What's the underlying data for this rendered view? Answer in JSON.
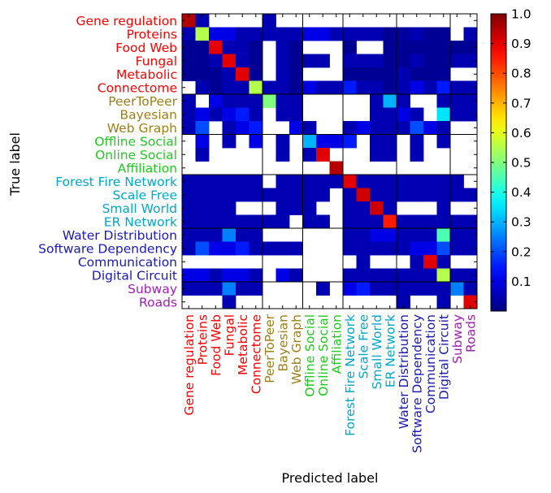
{
  "chart_data": {
    "type": "heatmap",
    "xlabel": "Predicted label",
    "ylabel": "True label",
    "labels": [
      "Gene regulation",
      "Proteins",
      "Food Web",
      "Fungal",
      "Metabolic",
      "Connectome",
      "PeerToPeer",
      "Bayesian",
      "Web Graph",
      "Offline Social",
      "Online Social",
      "Affiliation",
      "Forest Fire Network",
      "Scale Free",
      "Small World",
      "ER Network",
      "Water Distribution",
      "Software Dependency",
      "Communication",
      "Digital Circuit",
      "Subway",
      "Roads"
    ],
    "label_groups": [
      0,
      0,
      0,
      0,
      0,
      0,
      1,
      1,
      1,
      2,
      2,
      2,
      3,
      3,
      3,
      3,
      4,
      4,
      4,
      4,
      5,
      5
    ],
    "group_colors": [
      "#ff0000",
      "#9e7f17",
      "#1ecc1e",
      "#00a8cc",
      "#1a1ab4",
      "#a31db8"
    ],
    "group_boundaries": [
      6,
      9,
      12,
      16,
      20
    ],
    "colorbar": {
      "min": 0,
      "max": 1,
      "ticks": [
        0.1,
        0.2,
        0.3,
        0.4,
        0.5,
        0.6,
        0.7,
        0.8,
        0.9,
        1.0
      ],
      "colormap": "jet"
    },
    "matrix": [
      [
        0.95,
        0.05,
        null,
        null,
        null,
        null,
        0.05,
        null,
        null,
        null,
        null,
        null,
        null,
        null,
        null,
        null,
        null,
        null,
        null,
        null,
        null,
        null
      ],
      [
        0.05,
        0.55,
        0.1,
        0.1,
        0.05,
        0.05,
        0.05,
        0.05,
        0.05,
        0.1,
        0.1,
        0.05,
        0.05,
        0.05,
        0.05,
        0.02,
        0.03,
        0.05,
        0.02,
        0.02,
        null,
        0.05
      ],
      [
        0.02,
        0.02,
        0.9,
        0.05,
        0.05,
        0.02,
        null,
        0.05,
        0.02,
        null,
        null,
        null,
        0.02,
        null,
        null,
        0.02,
        0.02,
        0.02,
        0.02,
        0.02,
        0.02,
        0.02
      ],
      [
        0.02,
        0.02,
        0.05,
        0.9,
        0.05,
        0.02,
        null,
        0.05,
        0.02,
        0.05,
        0.05,
        null,
        0.05,
        0.05,
        0.05,
        0.02,
        0.02,
        0.05,
        0.02,
        0.02,
        0.05,
        0.05
      ],
      [
        0.02,
        0.02,
        0.02,
        0.05,
        0.9,
        0.02,
        null,
        0.05,
        0.02,
        null,
        null,
        null,
        0.02,
        0.02,
        0.02,
        0.02,
        0.05,
        0.02,
        0.02,
        0.02,
        null,
        null
      ],
      [
        null,
        0.05,
        0.02,
        0.05,
        0.05,
        0.55,
        0.05,
        0.05,
        0.02,
        0.1,
        0.05,
        0.05,
        0.15,
        0.05,
        0.05,
        0.02,
        0.05,
        0.1,
        0.05,
        0.15,
        0.05,
        0.05
      ],
      [
        0.05,
        null,
        0.1,
        0.05,
        0.05,
        0.05,
        0.5,
        0.05,
        0.05,
        null,
        null,
        null,
        null,
        null,
        0.05,
        0.3,
        0.05,
        null,
        null,
        0.05,
        0.05,
        0.05
      ],
      [
        0.05,
        0.1,
        0.05,
        0.1,
        0.15,
        0.05,
        null,
        0.05,
        0.05,
        null,
        null,
        null,
        null,
        null,
        0.05,
        0.05,
        0.1,
        0.05,
        null,
        0.35,
        0.05,
        0.05
      ],
      [
        0.05,
        0.2,
        null,
        0.05,
        0.1,
        0.15,
        null,
        null,
        0.1,
        0.05,
        null,
        null,
        0.05,
        0.1,
        0.05,
        0.05,
        0.05,
        0.2,
        0.1,
        0.05,
        null,
        null
      ],
      [
        null,
        0.1,
        null,
        0.05,
        null,
        0.1,
        null,
        0.05,
        null,
        0.3,
        0.1,
        0.1,
        0.15,
        null,
        0.05,
        0.05,
        null,
        0.05,
        null,
        0.05,
        null,
        null
      ],
      [
        null,
        0.05,
        null,
        null,
        null,
        null,
        null,
        0.05,
        null,
        0.05,
        0.9,
        null,
        null,
        null,
        0.05,
        0.05,
        null,
        0.05,
        null,
        null,
        null,
        null
      ],
      [
        null,
        null,
        null,
        null,
        null,
        null,
        null,
        null,
        null,
        null,
        null,
        0.95,
        null,
        null,
        null,
        null,
        null,
        null,
        null,
        null,
        null,
        null
      ],
      [
        0.05,
        0.05,
        0.05,
        0.05,
        0.05,
        0.05,
        null,
        0.05,
        0.05,
        0.05,
        0.05,
        0.05,
        0.9,
        0.05,
        0.05,
        0.05,
        0.05,
        0.05,
        0.05,
        0.05,
        0.05,
        null
      ],
      [
        0.05,
        0.05,
        0.05,
        0.05,
        0.05,
        0.05,
        0.05,
        0.05,
        0.05,
        0.05,
        0.05,
        null,
        0.05,
        0.92,
        0.05,
        0.05,
        0.05,
        0.05,
        0.05,
        0.05,
        0.05,
        0.05
      ],
      [
        0.05,
        0.05,
        0.05,
        0.05,
        null,
        null,
        null,
        0.05,
        0.05,
        0.05,
        null,
        null,
        0.05,
        0.05,
        0.92,
        0.05,
        null,
        null,
        null,
        0.05,
        null,
        null
      ],
      [
        0.05,
        0.05,
        0.05,
        0.05,
        0.05,
        0.05,
        0.05,
        0.05,
        null,
        0.05,
        0.05,
        null,
        0.05,
        0.05,
        0.05,
        0.85,
        0.05,
        0.05,
        0.05,
        0.05,
        0.05,
        0.05
      ],
      [
        0.05,
        0.05,
        0.05,
        0.25,
        0.05,
        0.05,
        null,
        null,
        null,
        null,
        null,
        null,
        0.05,
        0.05,
        0.1,
        0.1,
        0.05,
        0.05,
        0.05,
        0.45,
        0.05,
        0.05
      ],
      [
        0.05,
        0.2,
        0.1,
        0.1,
        0.15,
        0.05,
        0.05,
        0.05,
        0.05,
        null,
        null,
        null,
        0.05,
        0.05,
        0.05,
        0.05,
        0.05,
        0.1,
        0.1,
        0.2,
        0.05,
        0.05
      ],
      [
        null,
        null,
        null,
        null,
        null,
        null,
        null,
        null,
        null,
        null,
        null,
        null,
        null,
        0.05,
        null,
        null,
        null,
        0.05,
        0.9,
        0.05,
        null,
        null
      ],
      [
        0.1,
        0.1,
        0.05,
        0.1,
        0.1,
        0.05,
        null,
        0.1,
        0.05,
        null,
        null,
        null,
        0.05,
        0.05,
        0.05,
        0.05,
        0.05,
        0.05,
        0.05,
        0.55,
        0.05,
        0.05
      ],
      [
        0.05,
        0.05,
        0.05,
        0.25,
        0.05,
        0.05,
        null,
        null,
        null,
        null,
        0.05,
        null,
        0.1,
        0.15,
        0.05,
        0.05,
        0.05,
        0.05,
        0.05,
        0.05,
        0.25,
        0.05
      ],
      [
        null,
        null,
        null,
        0.05,
        null,
        null,
        null,
        null,
        null,
        null,
        null,
        null,
        null,
        null,
        null,
        null,
        0.05,
        null,
        null,
        0.05,
        null,
        0.9
      ]
    ]
  }
}
